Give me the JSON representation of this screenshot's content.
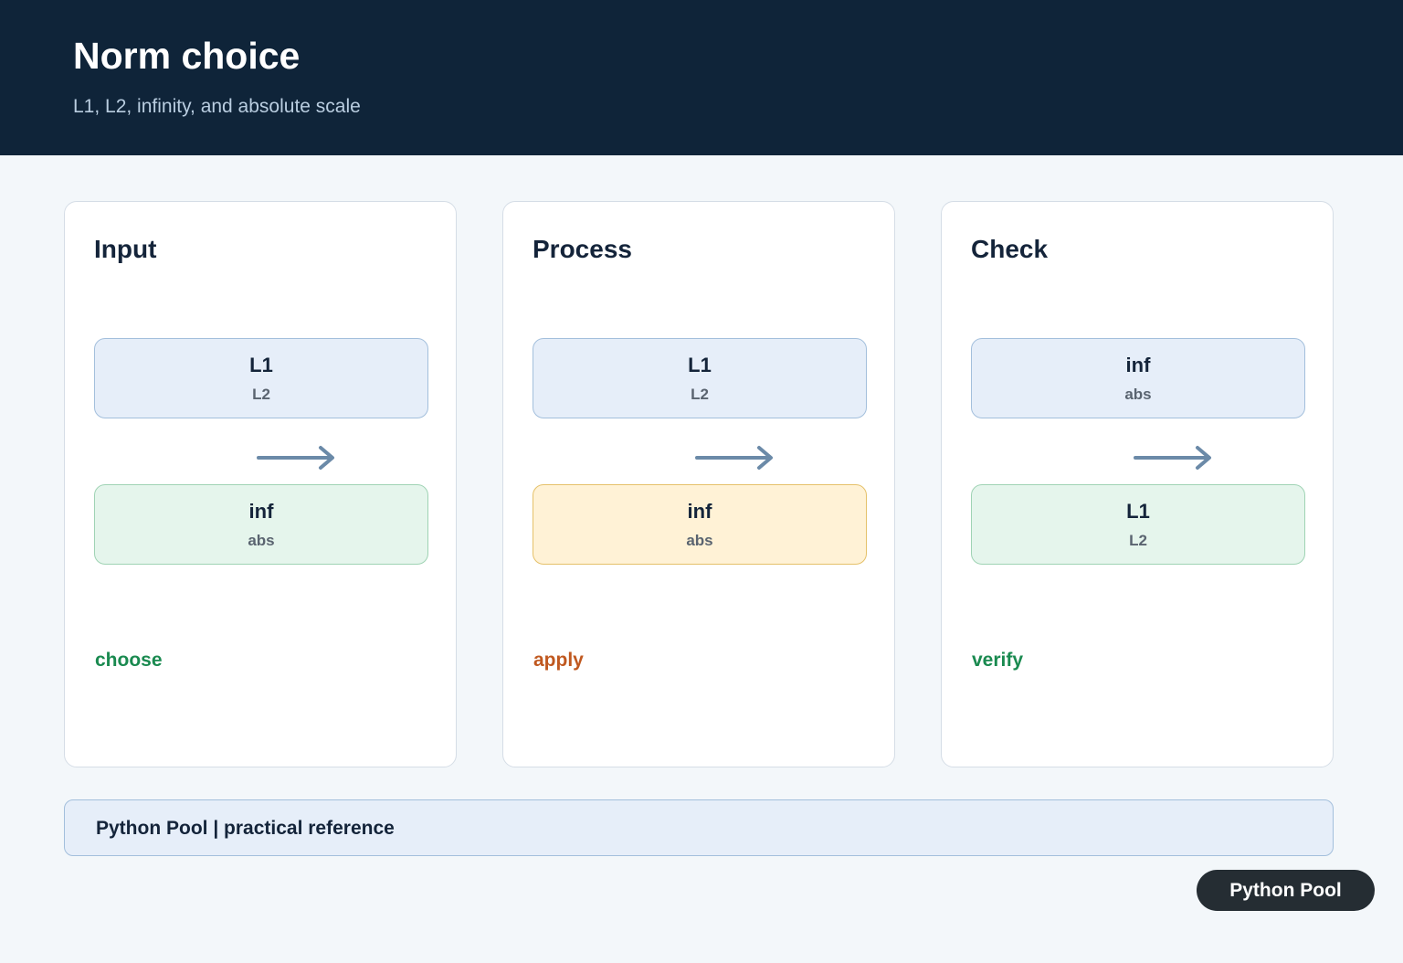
{
  "header": {
    "title": "Norm choice",
    "subtitle": "L1, L2, infinity, and absolute scale"
  },
  "panels": [
    {
      "title": "Input",
      "top": {
        "main": "L1",
        "sub": "L2"
      },
      "bottom": {
        "main": "inf",
        "sub": "abs"
      },
      "label": "choose"
    },
    {
      "title": "Process",
      "top": {
        "main": "L1",
        "sub": "L2"
      },
      "bottom": {
        "main": "inf",
        "sub": "abs"
      },
      "label": "apply"
    },
    {
      "title": "Check",
      "top": {
        "main": "inf",
        "sub": "abs"
      },
      "bottom": {
        "main": "L1",
        "sub": "L2"
      },
      "label": "verify"
    }
  ],
  "footer": {
    "text": "Python Pool | practical reference"
  },
  "badge": {
    "text": "Python Pool"
  }
}
